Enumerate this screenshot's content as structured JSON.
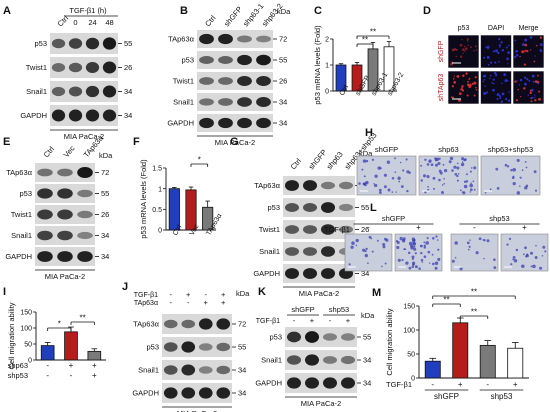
{
  "figure": {
    "panels": {
      "A": {
        "letter": "A",
        "treatment": "TGF-β1 (h)",
        "lanes": [
          "Ctrl",
          "0",
          "24",
          "48"
        ],
        "rows": [
          {
            "label": "p53",
            "kda": "55",
            "bands": [
              0.55,
              0.7,
              0.85,
              0.95
            ]
          },
          {
            "label": "Twist1",
            "kda": "26",
            "bands": [
              0.45,
              0.55,
              0.75,
              0.9
            ]
          },
          {
            "label": "Snail1",
            "kda": "34",
            "bands": [
              0.5,
              0.6,
              0.8,
              0.9
            ]
          },
          {
            "label": "GAPDH",
            "kda": "34",
            "bands": [
              0.9,
              0.9,
              0.9,
              0.9
            ]
          }
        ],
        "cell_line": "MIA  PaCa-2"
      },
      "B": {
        "letter": "B",
        "lanes": [
          "Ctrl",
          "shGFP",
          "shp63-1",
          "shp63-2"
        ],
        "rows": [
          {
            "label": "TAp63α",
            "kda": "72",
            "bands": [
              0.9,
              0.9,
              0.35,
              0.3
            ]
          },
          {
            "label": "p53",
            "kda": "55",
            "bands": [
              0.5,
              0.5,
              0.9,
              0.95
            ]
          },
          {
            "label": "Twist1",
            "kda": "26",
            "bands": [
              0.45,
              0.45,
              0.85,
              0.85
            ]
          },
          {
            "label": "Snail1",
            "kda": "34",
            "bands": [
              0.4,
              0.45,
              0.8,
              0.85
            ]
          },
          {
            "label": "GAPDH",
            "kda": "34",
            "bands": [
              0.9,
              0.9,
              0.9,
              0.9
            ]
          }
        ],
        "kda_unit": "kDa",
        "cell_line": "MIA  PaCa-2"
      },
      "D": {
        "letter": "D",
        "columns": [
          "p53",
          "DAPI",
          "Merge"
        ],
        "rows": [
          "shGFP",
          "shTAp63"
        ]
      },
      "E": {
        "letter": "E",
        "lanes": [
          "Ctrl",
          "Vec",
          "TAp63α"
        ],
        "rows": [
          {
            "label": "TAp63α",
            "kda": "72",
            "bands": [
              0.4,
              0.4,
              0.95
            ]
          },
          {
            "label": "p53",
            "kda": "55",
            "bands": [
              0.8,
              0.8,
              0.35
            ]
          },
          {
            "label": "Twist1",
            "kda": "26",
            "bands": [
              0.75,
              0.75,
              0.35
            ]
          },
          {
            "label": "Snail1",
            "kda": "34",
            "bands": [
              0.7,
              0.7,
              0.3
            ]
          },
          {
            "label": "GAPDH",
            "kda": "34",
            "bands": [
              0.9,
              0.9,
              0.9
            ]
          }
        ],
        "kda_unit": "kDa",
        "cell_line": "MIA  PaCa-2"
      },
      "G": {
        "letter": "G",
        "lanes": [
          "Ctrl",
          "shGFP",
          "shp63",
          "shp63+shp53"
        ],
        "rows": [
          {
            "label": "TAp63α",
            "kda": "72",
            "bands": [
              0.9,
              0.9,
              0.35,
              0.35
            ]
          },
          {
            "label": "p53",
            "kda": "55",
            "bands": [
              0.6,
              0.6,
              0.9,
              0.3
            ]
          },
          {
            "label": "Twist1",
            "kda": "26",
            "bands": [
              0.55,
              0.55,
              0.85,
              0.35
            ]
          },
          {
            "label": "Snail1",
            "kda": "34",
            "bands": [
              0.55,
              0.55,
              0.85,
              0.3
            ]
          },
          {
            "label": "GAPDH",
            "kda": "34",
            "bands": [
              0.9,
              0.9,
              0.9,
              0.9
            ]
          }
        ],
        "kda_unit": "kDa",
        "cell_line": "MIA  PaCa-2"
      },
      "H": {
        "letter": "H",
        "images": [
          "shGFP",
          "shp63",
          "shp63+shp53"
        ]
      },
      "J": {
        "letter": "J",
        "treatments": [
          {
            "label": "TGF-β1",
            "signs": [
              "-",
              "+",
              "-",
              "+"
            ]
          },
          {
            "label": "TAp63α",
            "signs": [
              "-",
              "-",
              "+",
              "+"
            ]
          }
        ],
        "rows": [
          {
            "label": "TAp63α",
            "kda": "72",
            "bands": [
              0.45,
              0.45,
              0.9,
              0.9
            ]
          },
          {
            "label": "p53",
            "kda": "55",
            "bands": [
              0.6,
              0.9,
              0.3,
              0.45
            ]
          },
          {
            "label": "Snail1",
            "kda": "34",
            "bands": [
              0.6,
              0.85,
              0.3,
              0.45
            ]
          },
          {
            "label": "GAPDH",
            "kda": "34",
            "bands": [
              0.9,
              0.9,
              0.9,
              0.9
            ]
          }
        ],
        "kda_unit": "kDa",
        "cell_line": "MIA  PaCa-2"
      },
      "K": {
        "letter": "K",
        "groups": [
          "shGFP",
          "shp53"
        ],
        "treatment": "TGF-β1",
        "signs": [
          "-",
          "+",
          "-",
          "+"
        ],
        "rows": [
          {
            "label": "p53",
            "kda": "55",
            "bands": [
              0.8,
              0.95,
              0.3,
              0.3
            ]
          },
          {
            "label": "Snail1",
            "kda": "34",
            "bands": [
              0.6,
              0.9,
              0.35,
              0.4
            ]
          },
          {
            "label": "GAPDH",
            "kda": "34",
            "bands": [
              0.9,
              0.9,
              0.9,
              0.9
            ]
          }
        ],
        "kda_unit": "kDa",
        "cell_line": "MIA  PaCa-2"
      },
      "L": {
        "letter": "L",
        "groups": [
          "shGFP",
          "shp53"
        ],
        "treatment": "TGF-β1",
        "signs": [
          "-",
          "+",
          "-",
          "+"
        ]
      }
    },
    "colors": {
      "blue": "#1f3fbf",
      "red": "#b51d1d",
      "gray": "#7a7a7a",
      "white": "#ffffff",
      "blot_bg": "#d9d9d9",
      "band": "#111111",
      "fluor_bg": "#0c0a1a",
      "fluor_dot": "#e0302a",
      "dapi_dot": "#2a34d8",
      "transwell_bg": "#c9cedc",
      "cell_blue": "#3a3fb3"
    }
  },
  "chart_data": [
    {
      "panel": "C",
      "type": "bar",
      "ylabel": "p53 mRNA levels (Fold)",
      "ylim": [
        0,
        2
      ],
      "yticks": [
        0,
        1,
        2
      ],
      "categories": [
        "Ctrl",
        "shGFP",
        "shp63-1",
        "shp63-2"
      ],
      "values": [
        1.0,
        1.0,
        1.62,
        1.7
      ],
      "errors": [
        0.05,
        0.1,
        0.25,
        0.2
      ],
      "bar_colors": [
        "#1f3fbf",
        "#b51d1d",
        "#7a7a7a",
        "#ffffff"
      ],
      "significance": [
        "**",
        "**"
      ]
    },
    {
      "panel": "F",
      "type": "bar",
      "ylabel": "p53 mRNA levels (Fold)",
      "ylim": [
        0,
        1.5
      ],
      "yticks": [
        0.0,
        0.5,
        1.0,
        1.5
      ],
      "categories": [
        "Ctrl",
        "Vec",
        "TAp63α"
      ],
      "values": [
        1.0,
        0.97,
        0.55
      ],
      "errors": [
        0.03,
        0.07,
        0.15
      ],
      "bar_colors": [
        "#1f3fbf",
        "#b51d1d",
        "#7a7a7a"
      ],
      "significance": [
        "*"
      ]
    },
    {
      "panel": "I",
      "type": "bar",
      "ylabel": "Cell migration ability",
      "ylim": [
        0,
        150
      ],
      "yticks": [
        0,
        50,
        100,
        150
      ],
      "treatments": [
        {
          "label": "shp63",
          "signs": [
            "-",
            "+",
            "+"
          ]
        },
        {
          "label": "shp53",
          "signs": [
            "-",
            "-",
            "+"
          ]
        }
      ],
      "values": [
        45,
        88,
        27
      ],
      "errors": [
        10,
        15,
        8
      ],
      "bar_colors": [
        "#1f3fbf",
        "#b51d1d",
        "#7a7a7a"
      ],
      "significance": [
        "*",
        "**"
      ]
    },
    {
      "panel": "M",
      "type": "bar",
      "ylabel": "Cell migration ability",
      "ylim": [
        0,
        150
      ],
      "yticks": [
        0,
        50,
        100,
        150
      ],
      "treatment": {
        "label": "TGF-β1",
        "signs": [
          "-",
          "+",
          "-",
          "+"
        ]
      },
      "groups": [
        "shGFP",
        "shp53"
      ],
      "values": [
        35,
        115,
        68,
        62
      ],
      "errors": [
        6,
        10,
        10,
        12
      ],
      "bar_colors": [
        "#1f3fbf",
        "#b51d1d",
        "#7a7a7a",
        "#ffffff"
      ],
      "significance": [
        "**",
        "**",
        "**"
      ]
    }
  ]
}
